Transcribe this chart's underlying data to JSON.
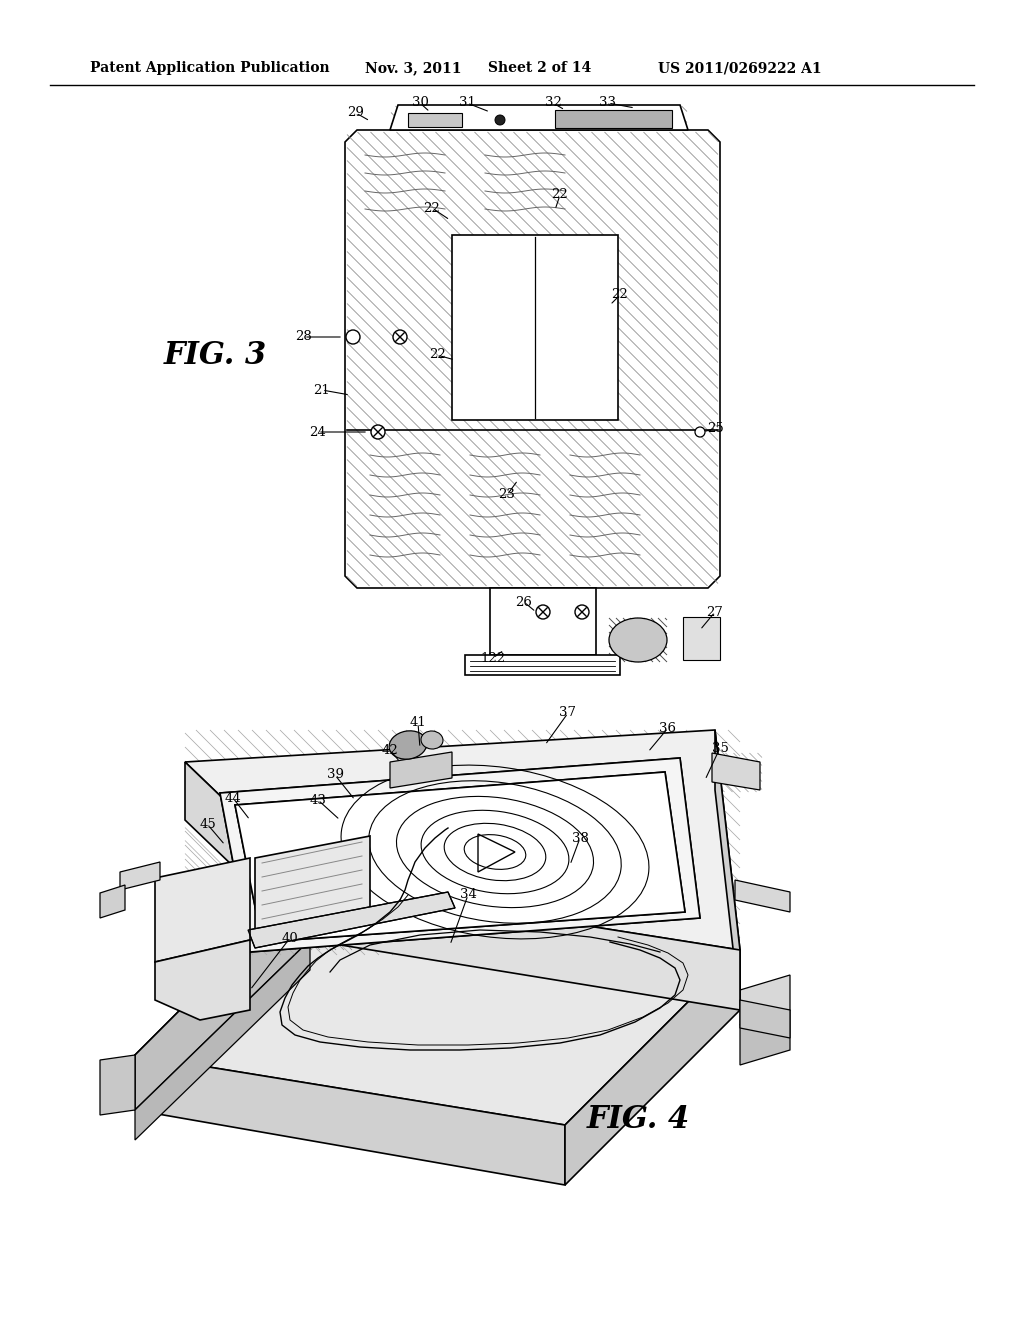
{
  "background_color": "#ffffff",
  "header_text": "Patent Application Publication",
  "header_date": "Nov. 3, 2011",
  "header_sheet": "Sheet 2 of 14",
  "header_patent": "US 2011/0269222 A1",
  "fig3_label": "FIG. 3",
  "fig4_label": "FIG. 4",
  "line_color": "#000000",
  "fig_width": 10.24,
  "fig_height": 13.2,
  "fig_dpi": 100
}
